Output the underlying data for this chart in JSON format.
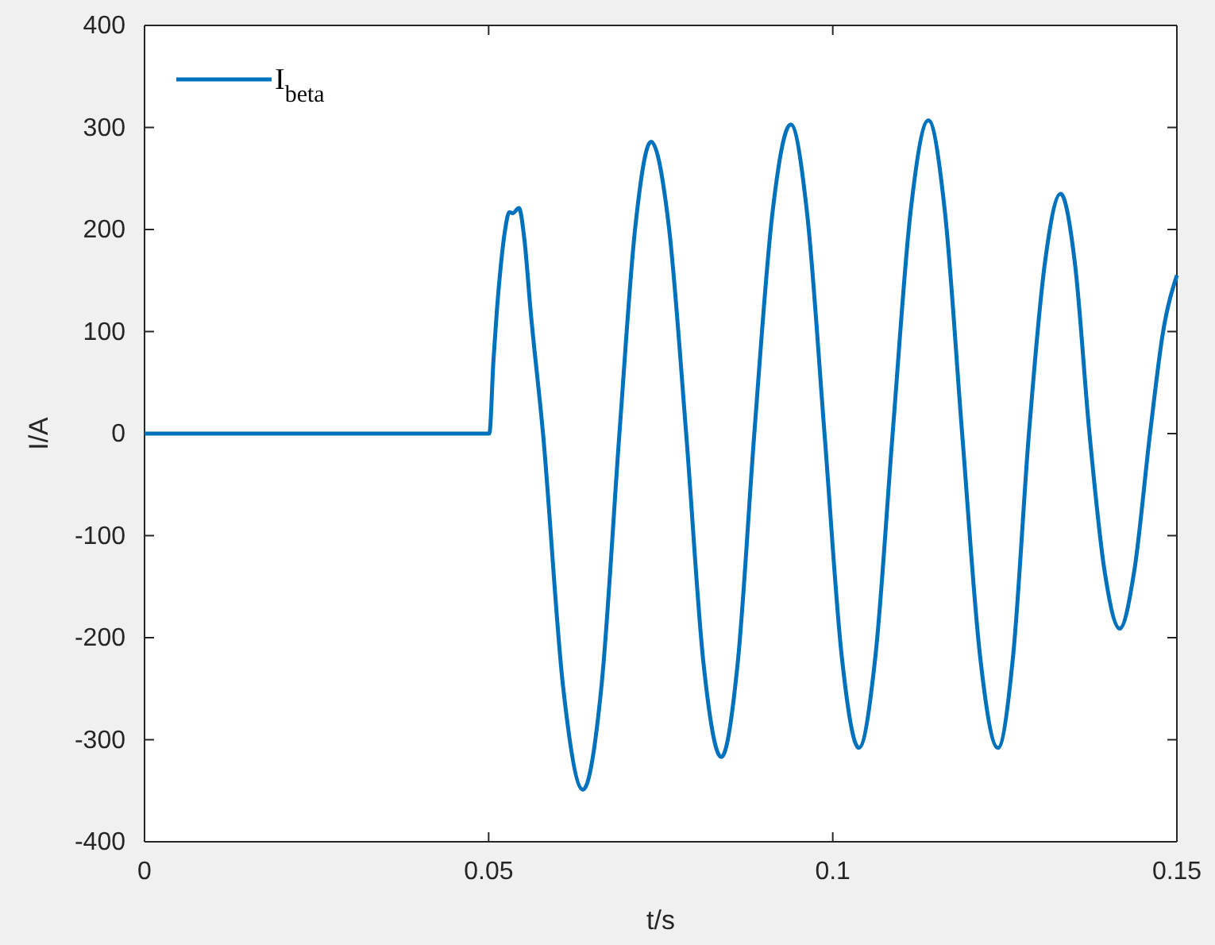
{
  "chart_data": {
    "type": "line",
    "xlabel": "t/s",
    "ylabel": "I/A",
    "xlim": [
      0,
      0.15
    ],
    "ylim": [
      -400,
      400
    ],
    "xticks": [
      0,
      0.05,
      0.1,
      0.15
    ],
    "yticks": [
      -400,
      -300,
      -200,
      -100,
      0,
      100,
      200,
      300,
      400
    ],
    "grid": false,
    "legend": "top left",
    "marker": "none",
    "line_style": "solid",
    "series": [
      {
        "name": "I$_{beta}$",
        "color": "#0072bd",
        "x": [
          0,
          0.0501,
          0.0507,
          0.0512,
          0.0517,
          0.0524,
          0.053,
          0.0535,
          0.0544,
          0.0552,
          0.0561,
          0.0579,
          0.0608,
          0.0637,
          0.0664,
          0.069,
          0.0713,
          0.0736,
          0.0762,
          0.0787,
          0.0812,
          0.0838,
          0.0862,
          0.0886,
          0.0912,
          0.0939,
          0.0963,
          0.0988,
          0.1013,
          0.1038,
          0.1062,
          0.1087,
          0.1113,
          0.1139,
          0.1163,
          0.1188,
          0.1214,
          0.124,
          0.1262,
          0.1285,
          0.1308,
          0.1331,
          0.1352,
          0.1373,
          0.1395,
          0.1417,
          0.1438,
          0.1461,
          0.148,
          0.15
        ],
        "values": [
          0,
          0,
          72,
          121,
          160,
          200,
          217,
          216,
          221,
          190,
          120,
          0,
          -247,
          -349,
          -247,
          0,
          202,
          286,
          202,
          0,
          -224,
          -317,
          -224,
          0,
          214,
          303,
          214,
          0,
          -218,
          -308,
          -218,
          0,
          217,
          307,
          217,
          0,
          -218,
          -308,
          -218,
          0,
          166,
          235,
          166,
          0,
          -135,
          -191,
          -135,
          0,
          100,
          155
        ]
      }
    ]
  }
}
